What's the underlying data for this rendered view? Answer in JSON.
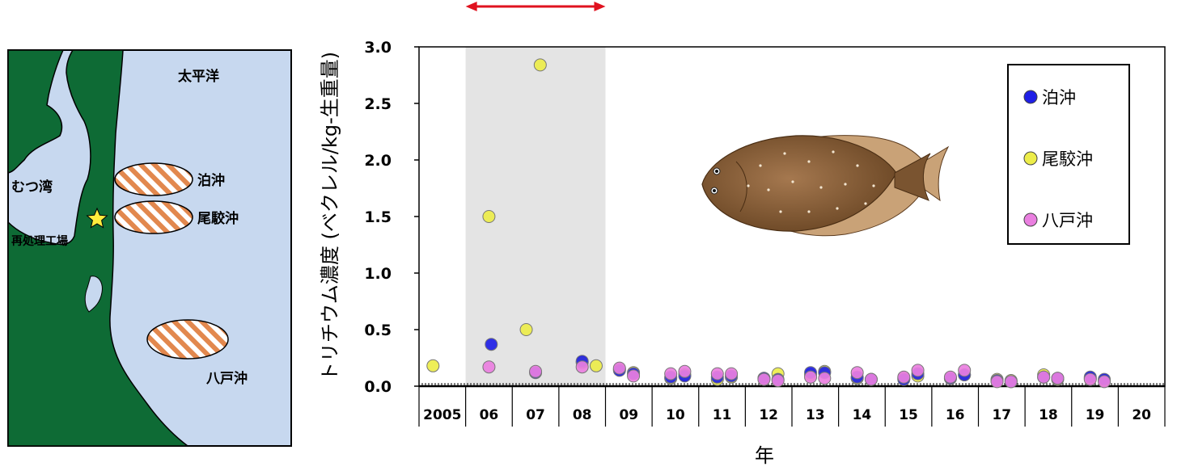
{
  "map": {
    "labels": {
      "ocean": "太平洋",
      "bay": "むつ湾",
      "plant": "再処理工場",
      "area1": "泊沖",
      "area2": "尾駮沖",
      "area3": "八戸沖"
    },
    "colors": {
      "sea": "#c7d8ef",
      "land": "#0e6b35",
      "hatch": "#e2884e"
    },
    "icons": {
      "plant": "star-icon"
    }
  },
  "chart_data": {
    "type": "scatter",
    "xlabel": "年",
    "ylabel": "トリチウム濃度 (ベクレル/kg-生重量)",
    "ylim": [
      0,
      3.0
    ],
    "yticks": [
      "0.0",
      "0.5",
      "1.0",
      "1.5",
      "2.0",
      "2.5",
      "3.0"
    ],
    "categories": [
      "2005",
      "06",
      "07",
      "08",
      "09",
      "10",
      "11",
      "12",
      "13",
      "14",
      "15",
      "16",
      "17",
      "18",
      "19",
      "20"
    ],
    "xlim": [
      2005,
      2021
    ],
    "highlight_range": [
      2006,
      2009
    ],
    "highlight_arrow": true,
    "legend_position": "top-right",
    "series": [
      {
        "name": "泊沖",
        "color": "#1f1fe6",
        "points": [
          [
            2006.55,
            0.37
          ],
          [
            2007.5,
            0.12
          ],
          [
            2008.5,
            0.22
          ],
          [
            2009.3,
            0.14
          ],
          [
            2009.6,
            0.11
          ],
          [
            2010.4,
            0.08
          ],
          [
            2010.7,
            0.09
          ],
          [
            2011.4,
            0.08
          ],
          [
            2011.7,
            0.09
          ],
          [
            2012.4,
            0.07
          ],
          [
            2012.7,
            0.06
          ],
          [
            2013.4,
            0.12
          ],
          [
            2013.7,
            0.12
          ],
          [
            2014.4,
            0.08
          ],
          [
            2014.7,
            0.06
          ],
          [
            2015.4,
            0.06
          ],
          [
            2015.7,
            0.11
          ],
          [
            2016.4,
            0.07
          ],
          [
            2016.7,
            0.1
          ],
          [
            2017.4,
            0.05
          ],
          [
            2017.7,
            0.04
          ],
          [
            2018.4,
            0.08
          ],
          [
            2018.7,
            0.07
          ],
          [
            2019.4,
            0.08
          ],
          [
            2019.7,
            0.06
          ]
        ]
      },
      {
        "name": "尾駮沖",
        "color": "#eded4a",
        "points": [
          [
            2005.3,
            0.18
          ],
          [
            2006.5,
            1.5
          ],
          [
            2007.3,
            0.5
          ],
          [
            2007.6,
            2.84
          ],
          [
            2008.5,
            0.21
          ],
          [
            2008.8,
            0.18
          ],
          [
            2009.3,
            0.15
          ],
          [
            2009.6,
            0.12
          ],
          [
            2010.4,
            0.07
          ],
          [
            2010.7,
            0.1
          ],
          [
            2011.4,
            0.06
          ],
          [
            2011.7,
            0.08
          ],
          [
            2012.4,
            0.07
          ],
          [
            2012.7,
            0.11
          ],
          [
            2013.4,
            0.1
          ],
          [
            2013.7,
            0.13
          ],
          [
            2014.4,
            0.07
          ],
          [
            2014.7,
            0.06
          ],
          [
            2015.4,
            0.07
          ],
          [
            2015.7,
            0.09
          ],
          [
            2016.4,
            0.07
          ],
          [
            2016.7,
            0.1
          ],
          [
            2017.4,
            0.06
          ],
          [
            2017.7,
            0.05
          ],
          [
            2018.4,
            0.1
          ],
          [
            2018.7,
            0.06
          ],
          [
            2019.4,
            0.07
          ],
          [
            2019.7,
            0.05
          ]
        ]
      },
      {
        "name": "八戸沖",
        "color": "#ea7fe0",
        "points": [
          [
            2006.5,
            0.17
          ],
          [
            2007.5,
            0.13
          ],
          [
            2008.5,
            0.17
          ],
          [
            2009.3,
            0.16
          ],
          [
            2009.6,
            0.09
          ],
          [
            2010.4,
            0.11
          ],
          [
            2010.7,
            0.13
          ],
          [
            2011.4,
            0.11
          ],
          [
            2011.7,
            0.11
          ],
          [
            2012.4,
            0.06
          ],
          [
            2012.7,
            0.05
          ],
          [
            2013.4,
            0.08
          ],
          [
            2013.7,
            0.07
          ],
          [
            2014.4,
            0.12
          ],
          [
            2014.7,
            0.06
          ],
          [
            2015.4,
            0.08
          ],
          [
            2015.7,
            0.14
          ],
          [
            2016.4,
            0.08
          ],
          [
            2016.7,
            0.14
          ],
          [
            2017.4,
            0.04
          ],
          [
            2017.7,
            0.04
          ],
          [
            2018.4,
            0.08
          ],
          [
            2018.7,
            0.07
          ],
          [
            2019.4,
            0.06
          ],
          [
            2019.7,
            0.04
          ]
        ]
      }
    ]
  }
}
